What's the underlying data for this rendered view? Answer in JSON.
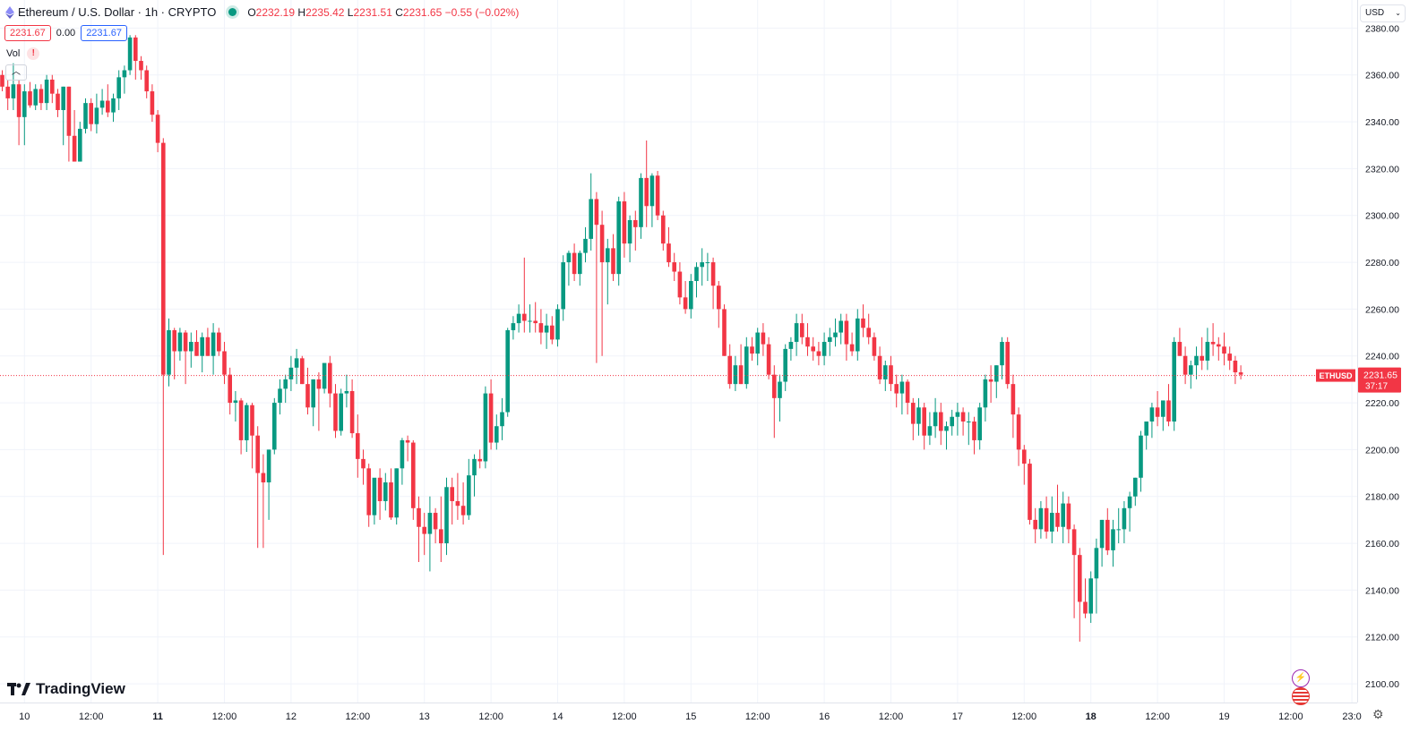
{
  "legend": {
    "symbol": "Ethereum / U.S. Dollar · 1h · CRYPTO",
    "o_label": "O",
    "o": "2232.19",
    "h_label": "H",
    "h": "2235.42",
    "l_label": "L",
    "l": "2231.51",
    "c_label": "C",
    "c": "2231.65",
    "change": "−0.55 (−0.02%)"
  },
  "bid": "2231.67",
  "spread": "0.00",
  "ask": "2231.67",
  "volume_label": "Vol",
  "currency": "USD",
  "brand": "TradingView",
  "price_tag": {
    "symbol": "ETHUSD",
    "price": "2231.65",
    "countdown": "37:17"
  },
  "colors": {
    "up": "#089981",
    "down": "#f23645",
    "grid": "#f0f3fa",
    "last_price_line": "#f23645"
  },
  "icons": [
    "ethereum-icon",
    "market-open-dot-icon",
    "warning-icon",
    "chevron-up-icon",
    "chevron-down-icon",
    "lightning-event-icon",
    "us-flag-event-icon",
    "gear-icon",
    "tradingview-logo-icon"
  ],
  "chart_data": {
    "type": "candlestick",
    "ylim": [
      2092,
      2392
    ],
    "y_ticks": [
      2100,
      2120,
      2140,
      2160,
      2180,
      2200,
      2220,
      2240,
      2260,
      2280,
      2300,
      2320,
      2340,
      2360,
      2380
    ],
    "y_tick_labels": [
      "2100.00",
      "2120.00",
      "2140.00",
      "2160.00",
      "2180.00",
      "2200.00",
      "2220.00",
      "2240.00",
      "2260.00",
      "2280.00",
      "2300.00",
      "2320.00",
      "2340.00",
      "2360.00",
      "2380.00"
    ],
    "x_ticks": [
      {
        "i": 4,
        "label": "10",
        "bold": false
      },
      {
        "i": 16,
        "label": "12:00",
        "bold": false
      },
      {
        "i": 28,
        "label": "11",
        "bold": true
      },
      {
        "i": 40,
        "label": "12:00",
        "bold": false
      },
      {
        "i": 52,
        "label": "12",
        "bold": false
      },
      {
        "i": 64,
        "label": "12:00",
        "bold": false
      },
      {
        "i": 76,
        "label": "13",
        "bold": false
      },
      {
        "i": 88,
        "label": "12:00",
        "bold": false
      },
      {
        "i": 100,
        "label": "14",
        "bold": false
      },
      {
        "i": 112,
        "label": "12:00",
        "bold": false
      },
      {
        "i": 124,
        "label": "15",
        "bold": false
      },
      {
        "i": 136,
        "label": "12:00",
        "bold": false
      },
      {
        "i": 148,
        "label": "16",
        "bold": false
      },
      {
        "i": 160,
        "label": "12:00",
        "bold": false
      },
      {
        "i": 172,
        "label": "17",
        "bold": false
      },
      {
        "i": 184,
        "label": "12:00",
        "bold": false
      },
      {
        "i": 196,
        "label": "18",
        "bold": true
      },
      {
        "i": 208,
        "label": "12:00",
        "bold": false
      },
      {
        "i": 220,
        "label": "19",
        "bold": false
      },
      {
        "i": 232,
        "label": "12:00",
        "bold": false
      },
      {
        "i": 243,
        "label": "23:0",
        "bold": false
      }
    ],
    "last_price": 2231.65,
    "candles": [
      [
        2360,
        2362,
        2353,
        2355
      ],
      [
        2355,
        2358,
        2345,
        2350
      ],
      [
        2350,
        2365,
        2345,
        2356
      ],
      [
        2356,
        2358,
        2330,
        2342
      ],
      [
        2342,
        2356,
        2330,
        2353
      ],
      [
        2353,
        2357,
        2346,
        2347
      ],
      [
        2347,
        2356,
        2345,
        2354
      ],
      [
        2354,
        2356,
        2345,
        2348
      ],
      [
        2348,
        2360,
        2345,
        2358
      ],
      [
        2358,
        2360,
        2348,
        2352
      ],
      [
        2352,
        2354,
        2342,
        2345
      ],
      [
        2345,
        2355,
        2330,
        2355
      ],
      [
        2355,
        2355,
        2323,
        2334
      ],
      [
        2334,
        2345,
        2323,
        2323
      ],
      [
        2323,
        2340,
        2323,
        2337
      ],
      [
        2337,
        2350,
        2335,
        2348
      ],
      [
        2348,
        2350,
        2336,
        2339
      ],
      [
        2339,
        2352,
        2335,
        2346
      ],
      [
        2346,
        2354,
        2343,
        2349
      ],
      [
        2349,
        2356,
        2342,
        2344
      ],
      [
        2344,
        2352,
        2340,
        2350
      ],
      [
        2350,
        2362,
        2345,
        2359
      ],
      [
        2359,
        2364,
        2352,
        2362
      ],
      [
        2362,
        2377,
        2360,
        2376
      ],
      [
        2376,
        2377,
        2358,
        2366
      ],
      [
        2366,
        2368,
        2358,
        2362
      ],
      [
        2362,
        2364,
        2350,
        2353
      ],
      [
        2353,
        2356,
        2340,
        2343
      ],
      [
        2343,
        2345,
        2327,
        2331
      ],
      [
        2331,
        2333,
        2155,
        2232
      ],
      [
        2232,
        2256,
        2227,
        2251
      ],
      [
        2251,
        2252,
        2230,
        2242
      ],
      [
        2242,
        2252,
        2238,
        2250
      ],
      [
        2250,
        2251,
        2228,
        2242
      ],
      [
        2242,
        2250,
        2235,
        2246
      ],
      [
        2246,
        2251,
        2240,
        2240
      ],
      [
        2240,
        2250,
        2233,
        2248
      ],
      [
        2248,
        2252,
        2240,
        2240
      ],
      [
        2240,
        2254,
        2232,
        2250
      ],
      [
        2250,
        2252,
        2240,
        2242
      ],
      [
        2242,
        2246,
        2228,
        2232
      ],
      [
        2232,
        2235,
        2215,
        2220
      ],
      [
        2220,
        2225,
        2212,
        2221
      ],
      [
        2221,
        2222,
        2198,
        2204
      ],
      [
        2204,
        2220,
        2199,
        2219
      ],
      [
        2219,
        2220,
        2192,
        2206
      ],
      [
        2206,
        2210,
        2158,
        2190
      ],
      [
        2190,
        2198,
        2158,
        2186
      ],
      [
        2186,
        2200,
        2170,
        2200
      ],
      [
        2200,
        2222,
        2198,
        2220
      ],
      [
        2220,
        2230,
        2215,
        2226
      ],
      [
        2226,
        2232,
        2220,
        2230
      ],
      [
        2230,
        2240,
        2225,
        2235
      ],
      [
        2235,
        2243,
        2228,
        2239
      ],
      [
        2239,
        2240,
        2228,
        2228
      ],
      [
        2228,
        2235,
        2215,
        2218
      ],
      [
        2218,
        2230,
        2210,
        2230
      ],
      [
        2230,
        2233,
        2208,
        2226
      ],
      [
        2226,
        2236,
        2224,
        2237
      ],
      [
        2237,
        2240,
        2218,
        2224
      ],
      [
        2224,
        2228,
        2205,
        2208
      ],
      [
        2208,
        2226,
        2206,
        2224
      ],
      [
        2224,
        2232,
        2218,
        2225
      ],
      [
        2225,
        2230,
        2205,
        2207
      ],
      [
        2207,
        2215,
        2188,
        2196
      ],
      [
        2196,
        2200,
        2185,
        2192
      ],
      [
        2192,
        2194,
        2167,
        2172
      ],
      [
        2172,
        2185,
        2168,
        2188
      ],
      [
        2188,
        2192,
        2170,
        2178
      ],
      [
        2178,
        2190,
        2174,
        2186
      ],
      [
        2186,
        2192,
        2170,
        2171
      ],
      [
        2171,
        2192,
        2168,
        2192
      ],
      [
        2192,
        2205,
        2185,
        2204
      ],
      [
        2204,
        2206,
        2195,
        2203
      ],
      [
        2203,
        2204,
        2170,
        2175
      ],
      [
        2175,
        2180,
        2152,
        2167
      ],
      [
        2167,
        2173,
        2155,
        2164
      ],
      [
        2164,
        2180,
        2148,
        2173
      ],
      [
        2173,
        2175,
        2160,
        2166
      ],
      [
        2166,
        2180,
        2152,
        2160
      ],
      [
        2160,
        2188,
        2155,
        2184
      ],
      [
        2184,
        2188,
        2168,
        2178
      ],
      [
        2178,
        2190,
        2170,
        2176
      ],
      [
        2176,
        2186,
        2168,
        2172
      ],
      [
        2172,
        2196,
        2170,
        2189
      ],
      [
        2189,
        2198,
        2180,
        2196
      ],
      [
        2196,
        2200,
        2192,
        2195
      ],
      [
        2195,
        2227,
        2192,
        2224
      ],
      [
        2224,
        2230,
        2200,
        2203
      ],
      [
        2203,
        2215,
        2200,
        2210
      ],
      [
        2210,
        2222,
        2204,
        2216
      ],
      [
        2216,
        2252,
        2214,
        2251
      ],
      [
        2251,
        2257,
        2247,
        2254
      ],
      [
        2254,
        2262,
        2250,
        2258
      ],
      [
        2258,
        2282,
        2250,
        2255
      ],
      [
        2255,
        2262,
        2250,
        2255
      ],
      [
        2255,
        2263,
        2250,
        2254
      ],
      [
        2254,
        2260,
        2245,
        2250
      ],
      [
        2250,
        2258,
        2243,
        2253
      ],
      [
        2253,
        2257,
        2245,
        2247
      ],
      [
        2247,
        2262,
        2244,
        2260
      ],
      [
        2260,
        2283,
        2255,
        2280
      ],
      [
        2280,
        2285,
        2270,
        2284
      ],
      [
        2284,
        2288,
        2272,
        2275
      ],
      [
        2275,
        2285,
        2270,
        2284
      ],
      [
        2284,
        2295,
        2280,
        2290
      ],
      [
        2290,
        2318,
        2285,
        2307
      ],
      [
        2307,
        2310,
        2237,
        2296
      ],
      [
        2296,
        2302,
        2240,
        2280
      ],
      [
        2280,
        2290,
        2262,
        2286
      ],
      [
        2286,
        2292,
        2272,
        2275
      ],
      [
        2275,
        2308,
        2270,
        2306
      ],
      [
        2306,
        2310,
        2282,
        2288
      ],
      [
        2288,
        2300,
        2280,
        2298
      ],
      [
        2298,
        2302,
        2285,
        2295
      ],
      [
        2295,
        2318,
        2290,
        2316
      ],
      [
        2316,
        2332,
        2295,
        2304
      ],
      [
        2304,
        2318,
        2295,
        2317
      ],
      [
        2317,
        2319,
        2298,
        2300
      ],
      [
        2300,
        2302,
        2285,
        2288
      ],
      [
        2288,
        2295,
        2278,
        2280
      ],
      [
        2280,
        2284,
        2272,
        2276
      ],
      [
        2276,
        2280,
        2262,
        2265
      ],
      [
        2265,
        2272,
        2258,
        2260
      ],
      [
        2260,
        2275,
        2256,
        2272
      ],
      [
        2272,
        2280,
        2265,
        2278
      ],
      [
        2278,
        2286,
        2270,
        2280
      ],
      [
        2280,
        2284,
        2272,
        2280
      ],
      [
        2280,
        2282,
        2260,
        2270
      ],
      [
        2270,
        2272,
        2252,
        2260
      ],
      [
        2260,
        2262,
        2240,
        2240
      ],
      [
        2240,
        2245,
        2226,
        2228
      ],
      [
        2228,
        2240,
        2225,
        2236
      ],
      [
        2236,
        2245,
        2228,
        2228
      ],
      [
        2228,
        2248,
        2226,
        2244
      ],
      [
        2244,
        2248,
        2238,
        2241
      ],
      [
        2241,
        2252,
        2236,
        2250
      ],
      [
        2250,
        2254,
        2240,
        2245
      ],
      [
        2245,
        2248,
        2230,
        2232
      ],
      [
        2232,
        2236,
        2205,
        2222
      ],
      [
        2222,
        2232,
        2212,
        2229
      ],
      [
        2229,
        2245,
        2225,
        2243
      ],
      [
        2243,
        2248,
        2238,
        2246
      ],
      [
        2246,
        2258,
        2240,
        2254
      ],
      [
        2254,
        2258,
        2245,
        2248
      ],
      [
        2248,
        2254,
        2240,
        2244
      ],
      [
        2244,
        2248,
        2238,
        2242
      ],
      [
        2242,
        2246,
        2236,
        2240
      ],
      [
        2240,
        2250,
        2236,
        2246
      ],
      [
        2246,
        2252,
        2240,
        2248
      ],
      [
        2248,
        2256,
        2244,
        2250
      ],
      [
        2250,
        2258,
        2245,
        2255
      ],
      [
        2255,
        2258,
        2238,
        2245
      ],
      [
        2245,
        2250,
        2240,
        2242
      ],
      [
        2242,
        2260,
        2238,
        2256
      ],
      [
        2256,
        2262,
        2248,
        2252
      ],
      [
        2252,
        2258,
        2245,
        2248
      ],
      [
        2248,
        2250,
        2238,
        2240
      ],
      [
        2240,
        2244,
        2228,
        2230
      ],
      [
        2230,
        2238,
        2225,
        2236
      ],
      [
        2236,
        2240,
        2225,
        2228
      ],
      [
        2228,
        2232,
        2218,
        2224
      ],
      [
        2224,
        2232,
        2215,
        2229
      ],
      [
        2229,
        2230,
        2215,
        2220
      ],
      [
        2220,
        2222,
        2204,
        2211
      ],
      [
        2211,
        2222,
        2206,
        2218
      ],
      [
        2218,
        2220,
        2200,
        2206
      ],
      [
        2206,
        2216,
        2202,
        2210
      ],
      [
        2210,
        2222,
        2205,
        2216
      ],
      [
        2216,
        2220,
        2202,
        2208
      ],
      [
        2208,
        2212,
        2200,
        2210
      ],
      [
        2210,
        2217,
        2206,
        2214
      ],
      [
        2214,
        2220,
        2206,
        2216
      ],
      [
        2216,
        2218,
        2206,
        2212
      ],
      [
        2212,
        2216,
        2202,
        2212
      ],
      [
        2212,
        2214,
        2198,
        2204
      ],
      [
        2204,
        2220,
        2200,
        2218
      ],
      [
        2218,
        2232,
        2212,
        2230
      ],
      [
        2230,
        2236,
        2220,
        2229
      ],
      [
        2229,
        2236,
        2222,
        2236
      ],
      [
        2236,
        2248,
        2230,
        2246
      ],
      [
        2246,
        2248,
        2226,
        2228
      ],
      [
        2228,
        2232,
        2205,
        2215
      ],
      [
        2215,
        2218,
        2193,
        2200
      ],
      [
        2200,
        2202,
        2185,
        2194
      ],
      [
        2194,
        2196,
        2168,
        2170
      ],
      [
        2170,
        2175,
        2160,
        2166
      ],
      [
        2166,
        2178,
        2162,
        2175
      ],
      [
        2175,
        2180,
        2162,
        2165
      ],
      [
        2165,
        2180,
        2160,
        2173
      ],
      [
        2173,
        2185,
        2165,
        2167
      ],
      [
        2167,
        2182,
        2160,
        2177
      ],
      [
        2177,
        2180,
        2160,
        2166
      ],
      [
        2166,
        2168,
        2128,
        2155
      ],
      [
        2155,
        2158,
        2118,
        2135
      ],
      [
        2135,
        2145,
        2128,
        2130
      ],
      [
        2130,
        2148,
        2126,
        2145
      ],
      [
        2145,
        2162,
        2130,
        2158
      ],
      [
        2158,
        2170,
        2150,
        2170
      ],
      [
        2170,
        2175,
        2155,
        2157
      ],
      [
        2157,
        2170,
        2150,
        2166
      ],
      [
        2166,
        2175,
        2160,
        2166
      ],
      [
        2166,
        2178,
        2160,
        2175
      ],
      [
        2175,
        2182,
        2165,
        2180
      ],
      [
        2180,
        2188,
        2176,
        2188
      ],
      [
        2188,
        2208,
        2182,
        2206
      ],
      [
        2206,
        2212,
        2200,
        2212
      ],
      [
        2212,
        2220,
        2205,
        2218
      ],
      [
        2218,
        2225,
        2210,
        2214
      ],
      [
        2214,
        2220,
        2208,
        2221
      ],
      [
        2221,
        2228,
        2210,
        2212
      ],
      [
        2212,
        2248,
        2208,
        2246
      ],
      [
        2246,
        2252,
        2240,
        2240
      ],
      [
        2240,
        2244,
        2228,
        2232
      ],
      [
        2232,
        2238,
        2226,
        2236
      ],
      [
        2236,
        2244,
        2230,
        2240
      ],
      [
        2240,
        2248,
        2234,
        2238
      ],
      [
        2238,
        2252,
        2234,
        2246
      ],
      [
        2246,
        2254,
        2240,
        2245
      ],
      [
        2245,
        2248,
        2238,
        2244
      ],
      [
        2244,
        2250,
        2236,
        2241
      ],
      [
        2241,
        2244,
        2234,
        2238
      ],
      [
        2238,
        2240,
        2228,
        2233
      ],
      [
        2233,
        2236,
        2230,
        2232
      ]
    ]
  }
}
